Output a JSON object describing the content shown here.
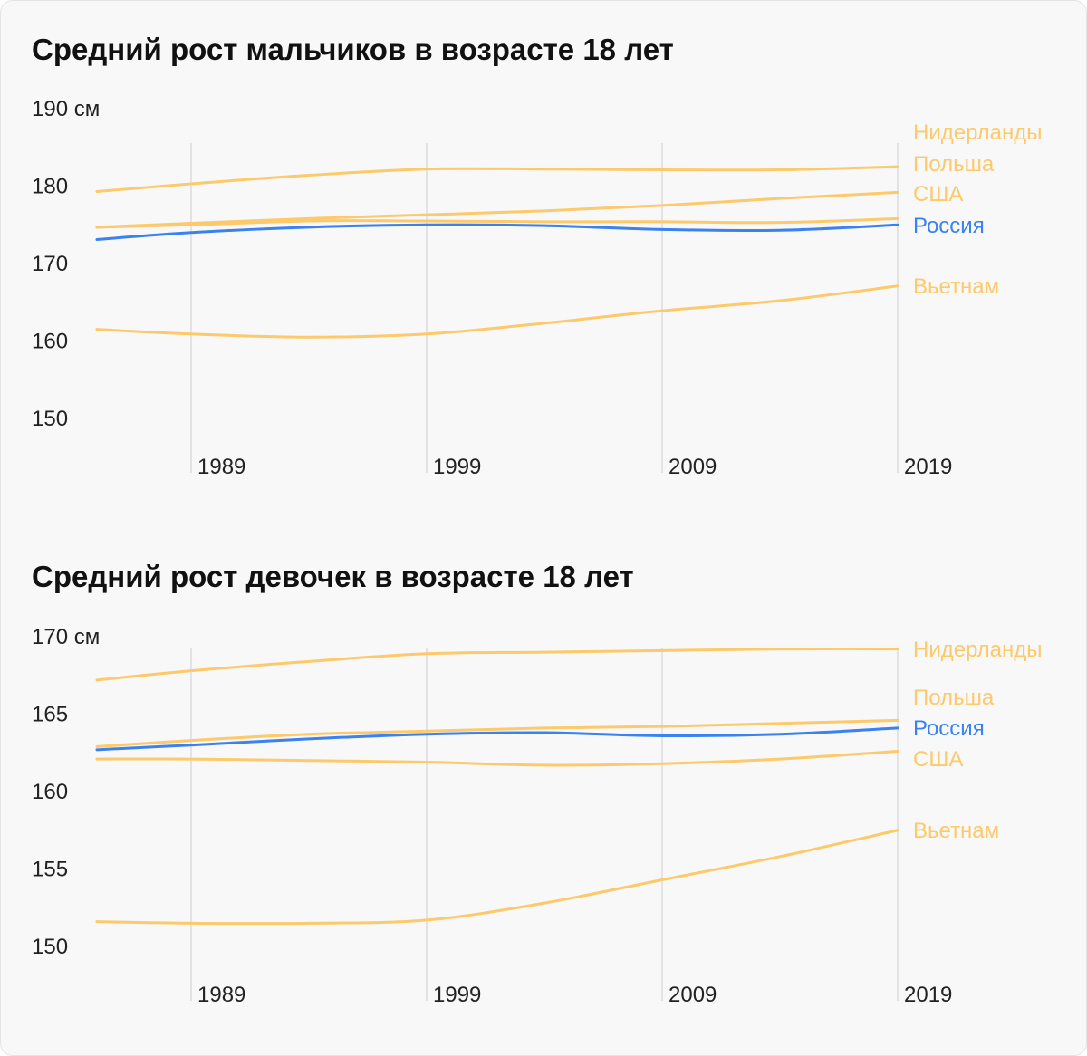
{
  "chart_data": [
    {
      "type": "line",
      "title": "Средний рост мальчиков в возрасте 18 лет",
      "ylabel_unit": "см",
      "ylim": [
        150,
        190
      ],
      "yticks": [
        "190 см",
        "180",
        "170",
        "160",
        "150"
      ],
      "ytick_values": [
        190,
        180,
        170,
        160,
        150
      ],
      "xlim": [
        1985,
        2019
      ],
      "xticks": [
        "1989",
        "1999",
        "2009",
        "2019"
      ],
      "xtick_values": [
        1989,
        1999,
        2009,
        2019
      ],
      "x": [
        1985,
        1989,
        1994,
        1999,
        2004,
        2009,
        2014,
        2019
      ],
      "series": [
        {
          "name": "Нидерланды",
          "color": "#fcc96b",
          "values": [
            179.3,
            180.3,
            181.4,
            182.2,
            182.2,
            182.1,
            182.1,
            182.5
          ]
        },
        {
          "name": "Польша",
          "color": "#fcc96b",
          "values": [
            174.7,
            175.2,
            175.8,
            176.3,
            176.8,
            177.5,
            178.4,
            179.2
          ]
        },
        {
          "name": "США",
          "color": "#fcc96b",
          "values": [
            174.7,
            175.0,
            175.5,
            175.5,
            175.4,
            175.4,
            175.3,
            175.8
          ]
        },
        {
          "name": "Вьетнам",
          "color": "#fcc96b",
          "values": [
            161.5,
            160.9,
            160.5,
            160.9,
            162.3,
            163.9,
            165.2,
            167.1
          ]
        },
        {
          "name": "Россия",
          "color": "#3b82f0",
          "values": [
            173.1,
            174.0,
            174.7,
            175.0,
            174.9,
            174.4,
            174.3,
            175.0
          ]
        }
      ]
    },
    {
      "type": "line",
      "title": "Средний рост девочек в возрасте 18 лет",
      "ylabel_unit": "см",
      "ylim": [
        150,
        170
      ],
      "yticks": [
        "170 см",
        "165",
        "160",
        "155",
        "150"
      ],
      "ytick_values": [
        170,
        165,
        160,
        155,
        150
      ],
      "xlim": [
        1985,
        2019
      ],
      "xticks": [
        "1989",
        "1999",
        "2009",
        "2019"
      ],
      "xtick_values": [
        1989,
        1999,
        2009,
        2019
      ],
      "x": [
        1985,
        1989,
        1994,
        1999,
        2004,
        2009,
        2014,
        2019
      ],
      "series": [
        {
          "name": "Нидерланды",
          "color": "#fcc96b",
          "values": [
            167.2,
            167.8,
            168.4,
            168.9,
            169.0,
            169.1,
            169.2,
            169.2
          ]
        },
        {
          "name": "Польша",
          "color": "#fcc96b",
          "values": [
            162.9,
            163.3,
            163.7,
            163.9,
            164.1,
            164.2,
            164.4,
            164.6
          ]
        },
        {
          "name": "США",
          "color": "#fcc96b",
          "values": [
            162.1,
            162.1,
            162.0,
            161.9,
            161.7,
            161.8,
            162.1,
            162.6
          ]
        },
        {
          "name": "Вьетнам",
          "color": "#fcc96b",
          "values": [
            151.6,
            151.5,
            151.5,
            151.7,
            152.8,
            154.3,
            155.8,
            157.5
          ]
        },
        {
          "name": "Россия",
          "color": "#3b82f0",
          "values": [
            162.7,
            163.0,
            163.4,
            163.7,
            163.8,
            163.6,
            163.7,
            164.1
          ]
        }
      ]
    }
  ]
}
